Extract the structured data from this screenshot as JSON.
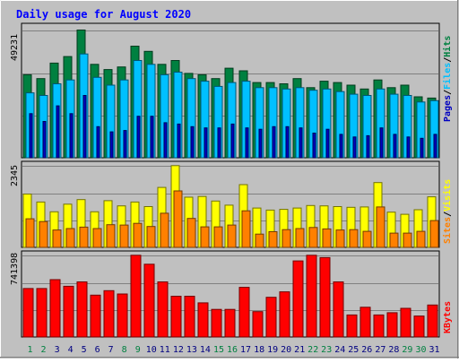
{
  "chart_data": [
    {
      "panel": "hits-files-pages",
      "type": "bar",
      "title": "Daily usage for August 2020",
      "categories": [
        "1",
        "2",
        "3",
        "4",
        "5",
        "6",
        "7",
        "8",
        "9",
        "10",
        "11",
        "12",
        "13",
        "14",
        "15",
        "16",
        "17",
        "18",
        "19",
        "20",
        "21",
        "22",
        "23",
        "24",
        "25",
        "26",
        "27",
        "28",
        "29",
        "30",
        "31"
      ],
      "weekend_days": [
        "1",
        "2",
        "8",
        "9",
        "15",
        "16",
        "22",
        "23",
        "29",
        "30"
      ],
      "max_label": "49231",
      "ylim": [
        0,
        49231
      ],
      "ylabel_parts": [
        "Pages",
        "Files",
        "Hits"
      ],
      "series": [
        {
          "name": "Hits",
          "color": "#008040",
          "values": [
            32000,
            30500,
            36500,
            39000,
            49231,
            36000,
            34000,
            35000,
            43000,
            41000,
            36000,
            37500,
            32500,
            32000,
            30500,
            34500,
            33500,
            29000,
            29000,
            28500,
            30500,
            27000,
            29500,
            29000,
            28000,
            26500,
            30000,
            27000,
            28000,
            23500,
            23000
          ]
        },
        {
          "name": "Files",
          "color": "#00C0FF",
          "values": [
            25000,
            24000,
            28500,
            30000,
            40000,
            31000,
            28000,
            30000,
            37500,
            36000,
            32000,
            33000,
            30500,
            29500,
            27500,
            29000,
            29500,
            27000,
            27000,
            26500,
            27000,
            26000,
            26500,
            25500,
            24500,
            24000,
            26500,
            24500,
            24000,
            21500,
            22000
          ]
        },
        {
          "name": "Pages",
          "color": "#0000C0",
          "values": [
            17000,
            14000,
            20000,
            17000,
            24000,
            12000,
            10000,
            10500,
            16000,
            16000,
            13500,
            13000,
            12000,
            11500,
            11500,
            13000,
            11500,
            11000,
            12000,
            12000,
            11500,
            9500,
            11000,
            9000,
            8000,
            8500,
            11500,
            9000,
            8000,
            7500,
            9000
          ]
        }
      ]
    },
    {
      "panel": "visits-sites",
      "type": "bar",
      "categories": [
        "1",
        "2",
        "3",
        "4",
        "5",
        "6",
        "7",
        "8",
        "9",
        "10",
        "11",
        "12",
        "13",
        "14",
        "15",
        "16",
        "17",
        "18",
        "19",
        "20",
        "21",
        "22",
        "23",
        "24",
        "25",
        "26",
        "27",
        "28",
        "29",
        "30",
        "31"
      ],
      "max_label": "2345",
      "ylim": [
        0,
        2345
      ],
      "ylabel_parts": [
        "Sites",
        "Visits"
      ],
      "series": [
        {
          "name": "Visits",
          "color": "#FFFF00",
          "values": [
            1530,
            1300,
            1020,
            1240,
            1370,
            1020,
            1340,
            1190,
            1300,
            1170,
            1720,
            2345,
            1440,
            1460,
            1330,
            1210,
            1800,
            1130,
            1070,
            1090,
            1130,
            1200,
            1190,
            1170,
            1150,
            1160,
            1860,
            1010,
            950,
            1080,
            1450
          ]
        },
        {
          "name": "Sites",
          "color": "#FF8000",
          "values": [
            820,
            740,
            500,
            540,
            580,
            540,
            650,
            640,
            690,
            600,
            980,
            1620,
            830,
            590,
            590,
            640,
            1050,
            380,
            450,
            510,
            540,
            570,
            530,
            500,
            510,
            460,
            1160,
            410,
            410,
            460,
            770
          ]
        }
      ]
    },
    {
      "panel": "kbytes",
      "type": "bar",
      "categories": [
        "1",
        "2",
        "3",
        "4",
        "5",
        "6",
        "7",
        "8",
        "9",
        "10",
        "11",
        "12",
        "13",
        "14",
        "15",
        "16",
        "17",
        "18",
        "19",
        "20",
        "21",
        "22",
        "23",
        "24",
        "25",
        "26",
        "27",
        "28",
        "29",
        "30",
        "31"
      ],
      "max_label": "741398",
      "ylim": [
        0,
        741398
      ],
      "ylabel_parts": [
        "KBytes"
      ],
      "series": [
        {
          "name": "KBytes",
          "color": "#FF0000",
          "values": [
            440000,
            440000,
            520000,
            460000,
            500000,
            380000,
            420000,
            390000,
            741398,
            660000,
            500000,
            370000,
            370000,
            310000,
            250000,
            250000,
            450000,
            230000,
            360000,
            410000,
            690000,
            741398,
            720000,
            500000,
            200000,
            270000,
            200000,
            220000,
            260000,
            190000,
            290000
          ]
        }
      ]
    }
  ],
  "palette": {
    "background": "#C0C0C0",
    "frame_light": "#FFFFFF",
    "frame_dark": "#808080",
    "title": "#0000FF",
    "weekday_label": "#000080",
    "weekend_label": "#008040",
    "separator": "#000000",
    "grid": "#808080"
  }
}
